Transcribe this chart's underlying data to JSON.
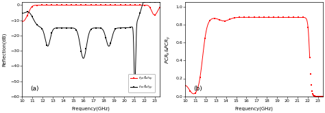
{
  "title_a": "(a)",
  "title_b": "(b)",
  "xlabel": "Frequency(GHz)",
  "ylabel_a": "Reflection(dB)",
  "ylabel_b": "PCR$_x$&PCR$_y$",
  "freq_min": 10,
  "freq_max": 23.5,
  "ylim_a": [
    -60,
    2
  ],
  "ylim_b": [
    0.0,
    1.05
  ],
  "yticks_a": [
    0,
    -10,
    -20,
    -30,
    -40,
    -50,
    -60
  ],
  "yticks_b": [
    0.0,
    0.2,
    0.4,
    0.6,
    0.8,
    1.0
  ],
  "xticks": [
    10,
    11,
    12,
    13,
    14,
    15,
    16,
    17,
    18,
    19,
    20,
    21,
    22,
    23
  ],
  "color_red": "#ff0000",
  "color_black": "#000000",
  "background": "#ffffff",
  "figwidth": 4.74,
  "figheight": 1.65,
  "dpi": 100
}
